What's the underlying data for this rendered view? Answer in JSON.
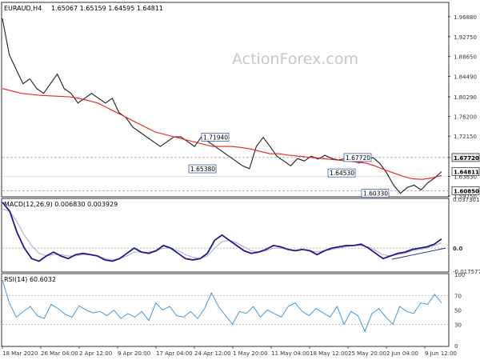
{
  "header": {
    "symbol": "EURAUD,H4",
    "ohlc": "1.65067 1.65159 1.64595 1.64811"
  },
  "watermark": "ActionForex.com",
  "colors": {
    "price": "#1f1f1f",
    "ma": "#e8201f",
    "macd": "#1b1b8c",
    "signal": "#a9a9c8",
    "rsi": "#2f8fd8",
    "trend": "#1b1b8c",
    "grid_dash": "#9a9a9a",
    "axis_text": "#333333",
    "label_border": "#3a5fb0"
  },
  "chart_data": [
    {
      "type": "line",
      "panel": "price",
      "ylim": [
        1.5975,
        1.9968
      ],
      "y_ticks": [
        "1.96880",
        "1.92750",
        "1.88650",
        "1.84490",
        "1.80290",
        "1.76200",
        "1.72150",
        "1.67720",
        "1.63830",
        "1.59750"
      ],
      "tick_values": [
        1.9688,
        1.9275,
        1.8865,
        1.8449,
        1.8029,
        1.762,
        1.7215,
        1.6772,
        1.6383,
        1.5975
      ],
      "x_labels": [
        "18 Mar 2020",
        "26 Mar 04:00",
        "2 Apr 12:00",
        "9 Apr 20:00",
        "17 Apr 04:00",
        "24 Apr 12:00",
        "1 May 20:00",
        "11 May 04:00",
        "18 May 12:00",
        "25 May 20:00",
        "2 Jun 04:00",
        "9 Jun 12:00"
      ],
      "series": [
        {
          "values": [
            1.965,
            1.89,
            1.86,
            1.83,
            1.84,
            1.82,
            1.81,
            1.83,
            1.85,
            1.82,
            1.81,
            1.79,
            1.8,
            1.81,
            1.8,
            1.79,
            1.8,
            1.77,
            1.76,
            1.74,
            1.73,
            1.72,
            1.71,
            1.7,
            1.71,
            1.72,
            1.72,
            1.71,
            1.7,
            1.72,
            1.71,
            1.7,
            1.69,
            1.68,
            1.67,
            1.66,
            1.654,
            1.7,
            1.719,
            1.7,
            1.68,
            1.67,
            1.66,
            1.675,
            1.67,
            1.68,
            1.674,
            1.682,
            1.675,
            1.672,
            1.675,
            1.67,
            1.666,
            1.672,
            1.677,
            1.665,
            1.645,
            1.62,
            1.603,
            1.615,
            1.62,
            1.61,
            1.625,
            1.635,
            1.648
          ]
        },
        {
          "values": [
            1.82,
            1.815,
            1.81,
            1.808,
            1.806,
            1.805,
            1.804,
            1.803,
            1.8,
            1.795,
            1.79,
            1.78,
            1.77,
            1.76,
            1.75,
            1.74,
            1.73,
            1.725,
            1.72,
            1.715,
            1.71,
            1.705,
            1.7,
            1.7,
            1.7,
            1.698,
            1.695,
            1.69,
            1.685,
            1.685,
            1.682,
            1.68,
            1.678,
            1.676,
            1.674,
            1.672,
            1.67,
            1.668,
            1.666,
            1.66,
            1.652,
            1.645,
            1.638,
            1.633,
            1.632,
            1.635,
            1.64
          ]
        }
      ],
      "hlines": [
        1.6772,
        1.6085,
        1.6383
      ],
      "annotations": [
        "1.71940",
        "1.65380",
        "1.67720",
        "1.64530",
        "1.60330"
      ],
      "price_tags": [
        "1.67720",
        "1.64811",
        "1.60850"
      ]
    },
    {
      "type": "line",
      "panel": "macd",
      "title": "MACD(12,26,9) 0.006830 0.003929",
      "ylim": [
        -0.0176,
        0.0373
      ],
      "y_ticks": [
        "0.037301",
        "0.0",
        "-0.017577"
      ],
      "tick_values": [
        0.0373,
        0.0,
        -0.0176
      ],
      "zero_label": "0.0",
      "series": [
        {
          "values": [
            0.035,
            0.028,
            0.012,
            0.0,
            -0.008,
            -0.01,
            -0.006,
            -0.003,
            -0.006,
            -0.008,
            -0.005,
            -0.004,
            -0.005,
            -0.006,
            -0.009,
            -0.01,
            -0.008,
            -0.004,
            0.0,
            -0.003,
            -0.004,
            -0.002,
            0.002,
            0.0,
            -0.004,
            -0.008,
            -0.009,
            -0.008,
            -0.004,
            0.006,
            0.01,
            0.006,
            0.002,
            -0.002,
            -0.004,
            -0.003,
            -0.001,
            0.002,
            0.001,
            -0.001,
            -0.002,
            -0.001,
            -0.002,
            -0.005,
            -0.002,
            0.0,
            0.001,
            0.002,
            0.002,
            0.003,
            0.0,
            -0.004,
            -0.008,
            -0.006,
            -0.004,
            -0.003,
            -0.001,
            0.0,
            0.001,
            0.003,
            0.007
          ]
        },
        {
          "values": [
            0.03,
            0.028,
            0.02,
            0.01,
            0.002,
            -0.004,
            -0.006,
            -0.005,
            -0.005,
            -0.006,
            -0.006,
            -0.005,
            -0.005,
            -0.006,
            -0.008,
            -0.009,
            -0.008,
            -0.006,
            -0.003,
            -0.003,
            -0.003,
            -0.002,
            0.0,
            0.0,
            -0.002,
            -0.005,
            -0.007,
            -0.008,
            -0.006,
            0.0,
            0.005,
            0.006,
            0.004,
            0.001,
            -0.002,
            -0.003,
            -0.002,
            0.0,
            0.0,
            -0.001,
            -0.002,
            -0.001,
            -0.002,
            -0.003,
            -0.002,
            -0.001,
            0.0,
            0.001,
            0.002,
            0.002,
            0.001,
            -0.002,
            -0.005,
            -0.006,
            -0.005,
            -0.004,
            -0.002,
            -0.001,
            0.0,
            0.002,
            0.004
          ]
        }
      ]
    },
    {
      "type": "line",
      "panel": "rsi",
      "title": "RSI(14) 60.6032",
      "ylim": [
        0,
        100
      ],
      "y_ticks": [
        "100",
        "70",
        "50",
        "30",
        "0"
      ],
      "tick_values": [
        100,
        70,
        50,
        30,
        0
      ],
      "series": [
        {
          "values": [
            92,
            60,
            40,
            48,
            55,
            42,
            38,
            58,
            52,
            44,
            40,
            56,
            50,
            46,
            48,
            42,
            50,
            38,
            45,
            40,
            48,
            35,
            60,
            50,
            55,
            42,
            40,
            48,
            38,
            52,
            74,
            55,
            42,
            30,
            48,
            45,
            55,
            40,
            50,
            45,
            40,
            55,
            60,
            48,
            42,
            52,
            46,
            40,
            55,
            30,
            48,
            42,
            20,
            45,
            52,
            40,
            30,
            55,
            48,
            45,
            60,
            58,
            72,
            60
          ]
        }
      ]
    }
  ]
}
